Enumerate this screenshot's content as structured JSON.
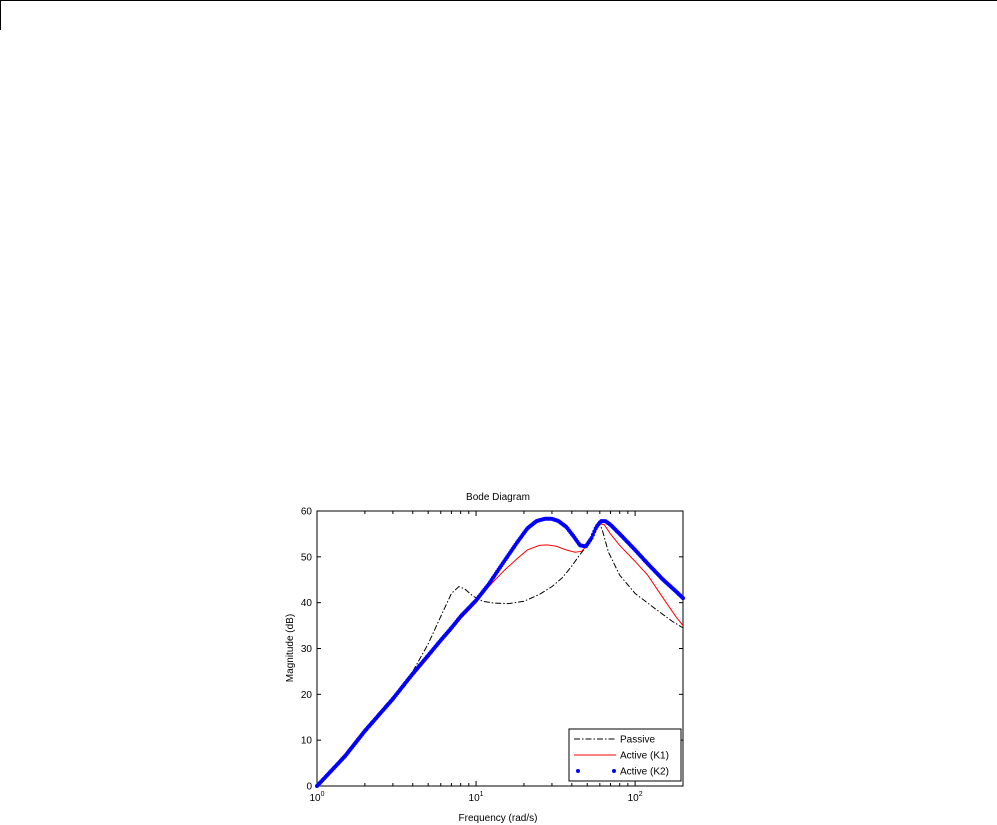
{
  "chart_data": {
    "type": "line",
    "title": "Bode Diagram",
    "xlabel": "Frequency  (rad/s)",
    "ylabel": "Magnitude (dB)",
    "xscale": "log",
    "xlim": [
      1,
      200
    ],
    "ylim": [
      0,
      60
    ],
    "x_ticks": [
      {
        "value": 1,
        "base": "10",
        "exp": "0"
      },
      {
        "value": 10,
        "base": "10",
        "exp": "1"
      },
      {
        "value": 100,
        "base": "10",
        "exp": "2"
      }
    ],
    "y_ticks": [
      "0",
      "10",
      "20",
      "30",
      "40",
      "50",
      "60"
    ],
    "grid": false,
    "legend_position": "bottom-right",
    "series": [
      {
        "name": "Passive",
        "color": "#000000",
        "style": "dashdot",
        "points": [
          [
            1,
            0
          ],
          [
            1.5,
            7
          ],
          [
            2,
            12.5
          ],
          [
            3,
            19.5
          ],
          [
            4,
            25
          ],
          [
            5,
            31
          ],
          [
            6,
            37
          ],
          [
            7,
            42
          ],
          [
            7.8,
            43.5
          ],
          [
            8.5,
            43
          ],
          [
            9.5,
            41.5
          ],
          [
            11,
            40.3
          ],
          [
            13,
            39.9
          ],
          [
            16,
            39.8
          ],
          [
            20,
            40.3
          ],
          [
            25,
            41.8
          ],
          [
            30,
            43.5
          ],
          [
            35,
            45.5
          ],
          [
            40,
            48
          ],
          [
            45,
            50.5
          ],
          [
            50,
            52.5
          ],
          [
            55,
            55
          ],
          [
            59,
            57.5
          ],
          [
            62,
            56
          ],
          [
            68,
            51
          ],
          [
            80,
            46
          ],
          [
            100,
            42
          ],
          [
            130,
            39
          ],
          [
            170,
            36
          ],
          [
            200,
            34.5
          ]
        ]
      },
      {
        "name": "Active (K1)",
        "color": "#ff0000",
        "style": "solid",
        "points": [
          [
            1,
            0
          ],
          [
            1.5,
            7
          ],
          [
            2,
            12.5
          ],
          [
            3,
            19
          ],
          [
            4,
            24
          ],
          [
            5,
            28
          ],
          [
            6,
            31.5
          ],
          [
            7,
            34
          ],
          [
            8,
            36.5
          ],
          [
            10,
            40
          ],
          [
            12,
            43.5
          ],
          [
            15,
            47
          ],
          [
            18,
            49.5
          ],
          [
            21,
            51.5
          ],
          [
            25,
            52.5
          ],
          [
            28,
            52.6
          ],
          [
            32,
            52.3
          ],
          [
            37,
            51.5
          ],
          [
            42,
            51
          ],
          [
            46,
            51.2
          ],
          [
            50,
            52.5
          ],
          [
            55,
            55
          ],
          [
            60,
            57.2
          ],
          [
            64,
            57
          ],
          [
            70,
            55
          ],
          [
            80,
            52.5
          ],
          [
            100,
            49
          ],
          [
            120,
            46
          ],
          [
            150,
            41
          ],
          [
            180,
            37
          ],
          [
            200,
            35
          ]
        ]
      },
      {
        "name": "Active (K2)",
        "color": "#0000ff",
        "style": "markers",
        "points": [
          [
            1,
            0
          ],
          [
            1.5,
            6.5
          ],
          [
            2,
            12
          ],
          [
            3,
            19
          ],
          [
            4,
            24.5
          ],
          [
            5,
            28.5
          ],
          [
            6,
            31.8
          ],
          [
            7,
            34.5
          ],
          [
            8,
            37
          ],
          [
            10,
            40.5
          ],
          [
            12,
            44
          ],
          [
            15,
            49
          ],
          [
            18,
            53
          ],
          [
            21,
            56.2
          ],
          [
            24,
            57.8
          ],
          [
            27,
            58.3
          ],
          [
            30,
            58.3
          ],
          [
            33,
            57.8
          ],
          [
            37,
            56.5
          ],
          [
            41,
            54.5
          ],
          [
            45,
            52.5
          ],
          [
            49,
            52.3
          ],
          [
            53,
            54
          ],
          [
            57,
            56.5
          ],
          [
            61,
            57.8
          ],
          [
            65,
            57.8
          ],
          [
            70,
            57
          ],
          [
            80,
            55
          ],
          [
            100,
            51.5
          ],
          [
            120,
            48.5
          ],
          [
            150,
            45
          ],
          [
            180,
            42.5
          ],
          [
            200,
            41
          ]
        ]
      }
    ]
  }
}
